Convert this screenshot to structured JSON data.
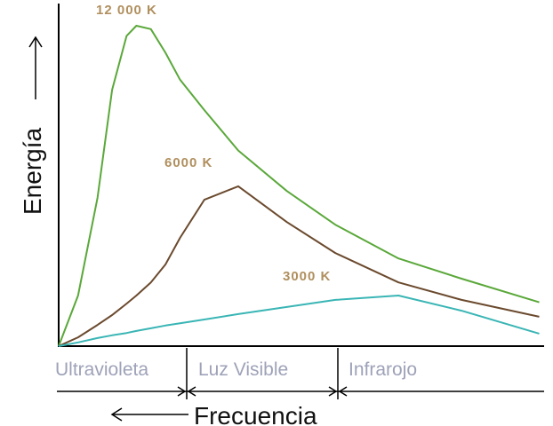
{
  "chart_data": {
    "type": "line",
    "y_label": "Energía",
    "x_label": "Frecuencia",
    "regions": [
      "Ultravioleta",
      "Luz Visible",
      "Infrarojo"
    ],
    "x": [
      0,
      4,
      8,
      11,
      14,
      16,
      19,
      22,
      25,
      30,
      37,
      47,
      57,
      70,
      83,
      99
    ],
    "xlim": [
      0,
      100
    ],
    "ylim": [
      0,
      100
    ],
    "series": [
      {
        "name": "12 000 K",
        "color": "#5aa83a",
        "values": [
          0,
          15,
          44,
          76,
          92,
          95,
          94,
          87,
          79,
          70,
          58,
          46,
          36,
          26,
          20,
          13
        ]
      },
      {
        "name": "6000 K",
        "color": "#6b4a2e",
        "values": [
          0,
          2.6,
          6.3,
          9.2,
          12.6,
          15,
          18.9,
          24.2,
          32.1,
          43.4,
          47.4,
          36.8,
          27.6,
          18.9,
          13.7,
          8.7
        ]
      },
      {
        "name": "3000 K",
        "color": "#3ab5b5",
        "values": [
          0,
          1.1,
          2.4,
          3.2,
          3.9,
          4.5,
          5.3,
          6.1,
          6.8,
          7.9,
          9.5,
          11.6,
          13.7,
          15,
          10.5,
          3.7
        ]
      }
    ]
  }
}
